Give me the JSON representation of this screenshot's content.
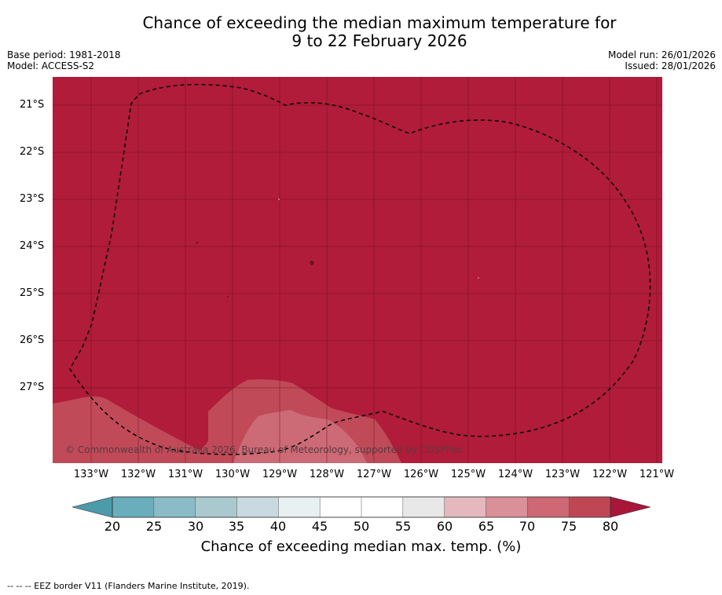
{
  "title": {
    "line1": "Chance of exceeding the median maximum temperature for",
    "line2": "9 to 22 February 2026"
  },
  "meta": {
    "base_period": "Base period: 1981-2018",
    "model": "Model: ACCESS-S2",
    "model_run": "Model run: 26/01/2026",
    "issued": "Issued: 28/01/2026"
  },
  "map": {
    "copyright": "© Commonwealth of Australia 2026, Bureau of Meteorology, supported by COSPPac",
    "latitude_labels": [
      "21°S",
      "22°S",
      "23°S",
      "24°S",
      "25°S",
      "26°S",
      "27°S"
    ],
    "longitude_labels": [
      "133°W",
      "132°W",
      "131°W",
      "130°W",
      "129°W",
      "128°W",
      "127°W",
      "126°W",
      "125°W",
      "124°W",
      "123°W",
      "122°W",
      "121°W"
    ],
    "colors": {
      "above_80": "#b01c3a",
      "75_80": "#c04a58",
      "70_75": "#cc6a75",
      "grid": "#6b1020",
      "eez": "#000000"
    }
  },
  "colorbar": {
    "ticks": [
      "20",
      "25",
      "30",
      "35",
      "40",
      "45",
      "50",
      "55",
      "60",
      "65",
      "70",
      "75",
      "80"
    ],
    "colors": [
      "#6aaebd",
      "#8bbbc6",
      "#a9c9cf",
      "#c8dadf",
      "#e9f0f2",
      "#ffffff",
      "#ffffff",
      "#e8e8e8",
      "#e4b8be",
      "#d99098",
      "#cd6874",
      "#bf4655"
    ],
    "under_color": "#4d9aab",
    "over_color": "#a8173a",
    "label": "Chance of exceeding median max. temp. (%)"
  },
  "footnote": "--  --  -- EEZ border V11 (Flanders Marine Institute, 2019)."
}
